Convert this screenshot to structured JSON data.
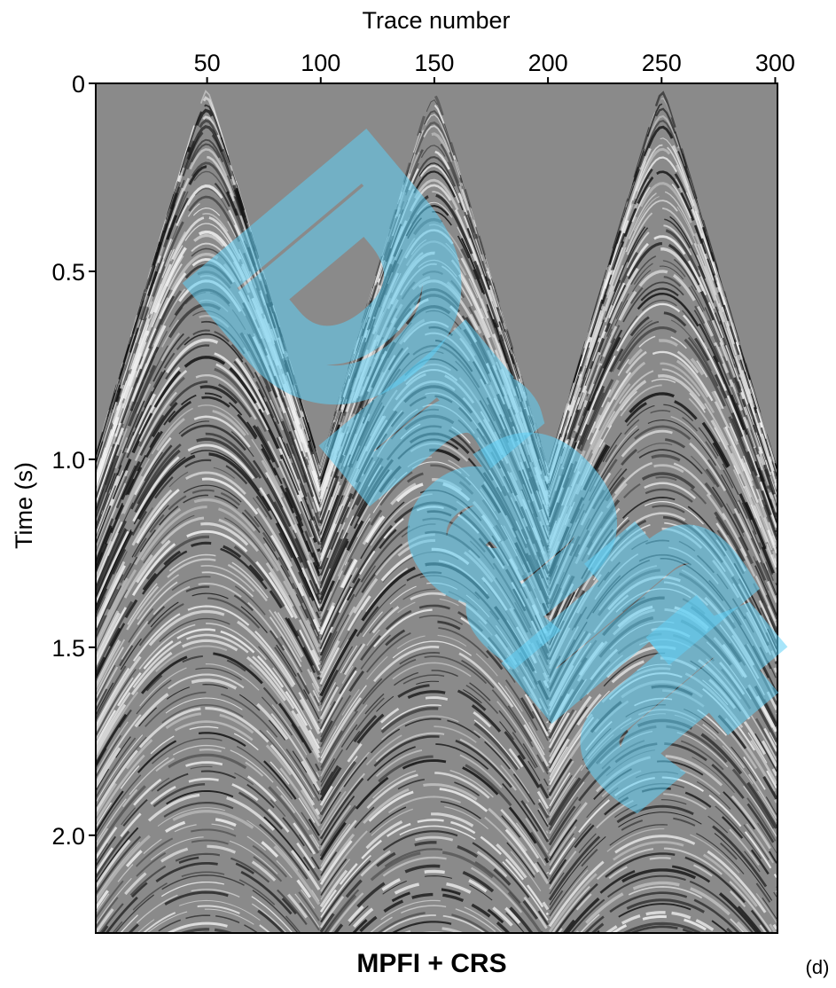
{
  "chart_data": {
    "type": "seismic",
    "title": "MPFI + CRS",
    "panel_label": "(d)",
    "watermark": "Draft",
    "xlabel": "Trace number",
    "ylabel": "Time (s)",
    "xlim": [
      1,
      301
    ],
    "xticks": [
      50,
      100,
      150,
      200,
      250,
      300
    ],
    "ylim": [
      0,
      2.26
    ],
    "yticks": [
      0,
      0.5,
      {
        "value": 1,
        "label": "1.0"
      },
      1.5,
      {
        "value": 2,
        "label": "2.0"
      }
    ],
    "background_color": "#8a8a8a",
    "watermark_color": "#5fd0f5"
  }
}
